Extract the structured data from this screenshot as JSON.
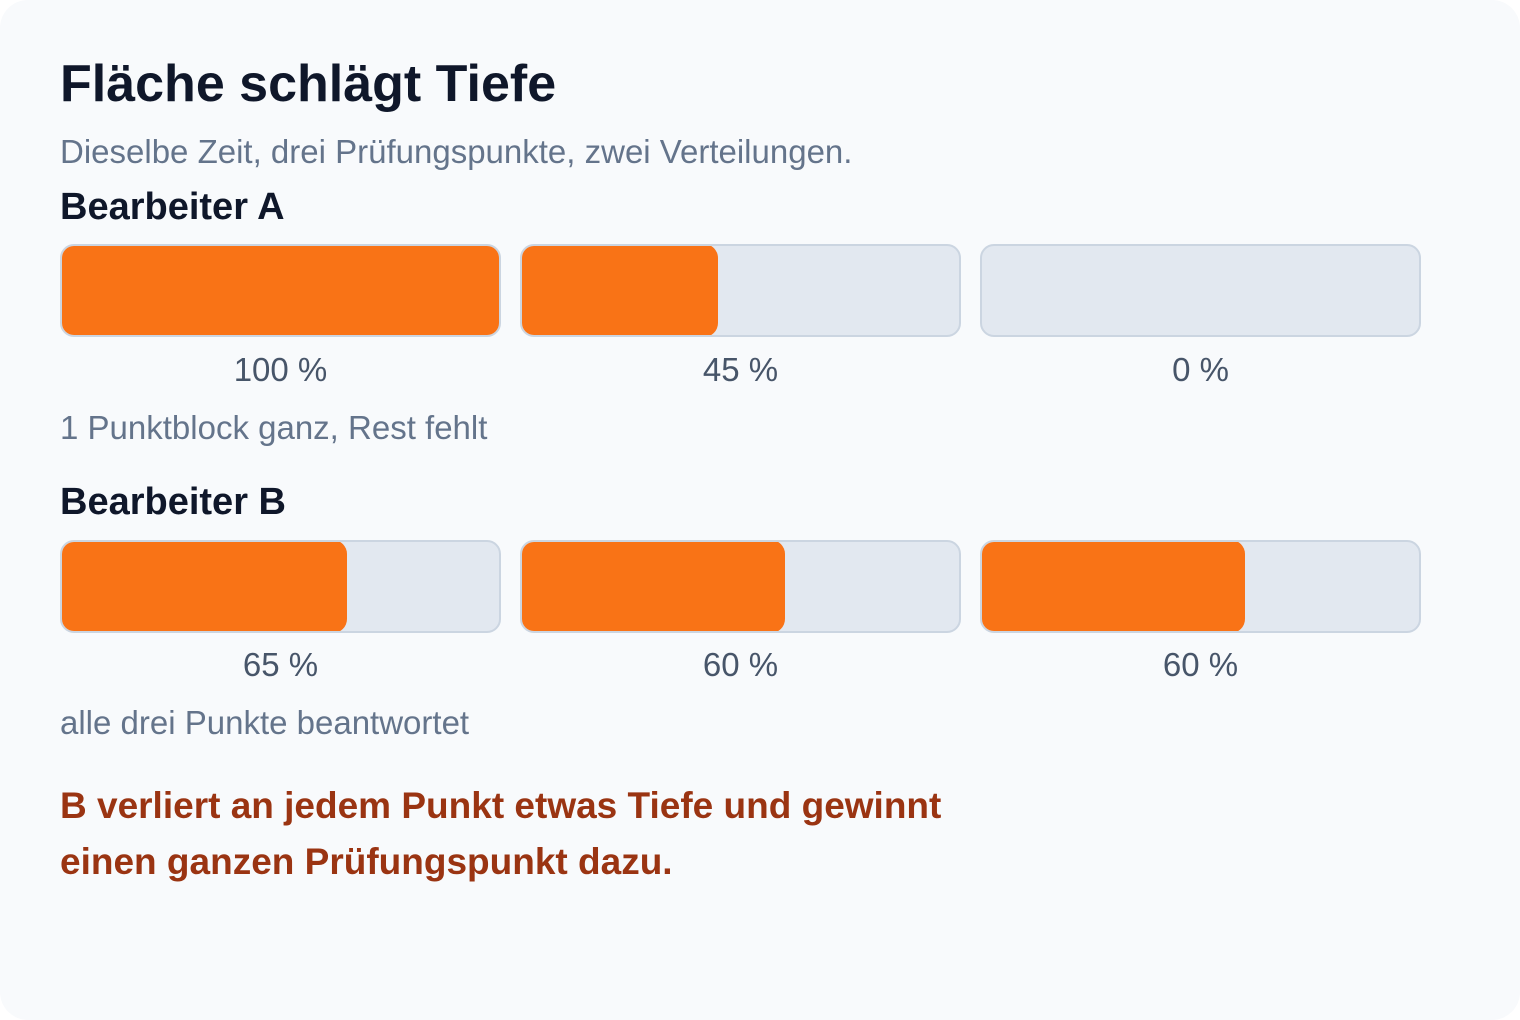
{
  "title": "Fläche schlägt Tiefe",
  "subtitle": "Dieselbe Zeit, drei Prüfungspunkte, zwei Verteilungen.",
  "colors": {
    "fill": "#f97316",
    "track": "#e2e8f0",
    "conclusion": "#9a3412"
  },
  "chart_data": {
    "type": "bar",
    "unit": "%",
    "ylim": [
      0,
      100
    ],
    "series": [
      {
        "name": "Bearbeiter A",
        "values": [
          100,
          45,
          0
        ],
        "labels": [
          "100 %",
          "45 %",
          "0 %"
        ],
        "note": "1 Punktblock ganz, Rest fehlt"
      },
      {
        "name": "Bearbeiter B",
        "values": [
          65,
          60,
          60
        ],
        "labels": [
          "65 %",
          "60 %",
          "60 %"
        ],
        "note": "alle drei Punkte beantwortet"
      }
    ]
  },
  "conclusion": {
    "line1": "B verliert an jedem Punkt etwas Tiefe und gewinnt",
    "line2": "einen ganzen Prüfungspunkt dazu."
  }
}
